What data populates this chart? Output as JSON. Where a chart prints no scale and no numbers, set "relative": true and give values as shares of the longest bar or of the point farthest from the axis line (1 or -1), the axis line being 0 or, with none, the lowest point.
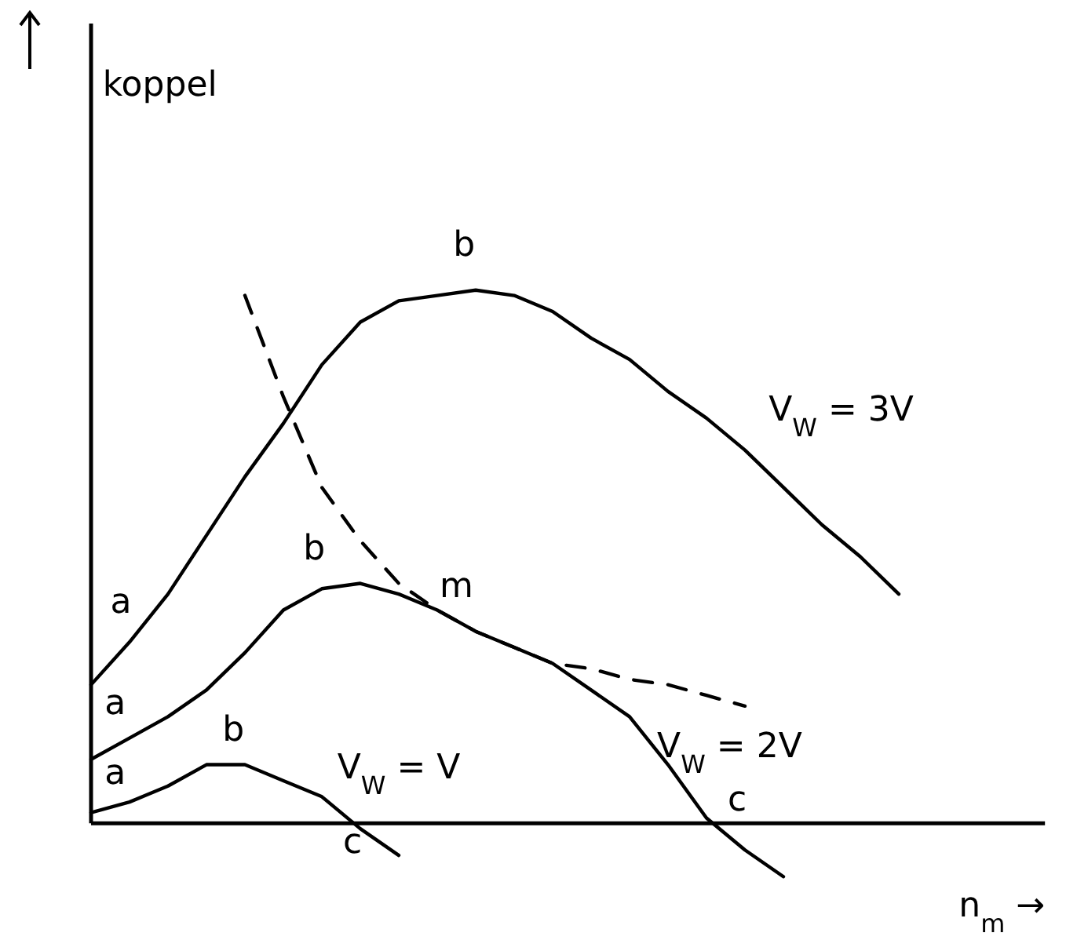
{
  "chart_data": {
    "type": "line",
    "relative": true,
    "xlabel": "n$_{m}$ →",
    "categories": [
      null,
      null,
      null,
      null,
      null,
      null,
      null,
      null,
      null,
      null,
      null,
      null,
      null,
      null,
      null,
      null,
      null,
      null,
      null,
      null,
      null,
      null
    ],
    "series": [
      {
        "color": "#000000",
        "values": [
          0.26,
          0.34,
          0.43,
          0.54,
          0.65,
          0.75,
          0.86,
          0.94,
          0.98,
          0.99,
          1,
          0.99,
          0.96,
          0.91,
          0.87,
          0.81,
          0.76,
          0.7,
          0.63,
          0.56,
          0.5,
          0.43
        ]
      },
      {
        "color": "#000000",
        "values": [
          0.12,
          0.16,
          0.2,
          0.25,
          0.32,
          0.4,
          0.44,
          0.45,
          0.43,
          0.4,
          0.36,
          0.33,
          0.3,
          0.25,
          0.2,
          0.11,
          0.01,
          -0.05,
          -0.1,
          null,
          null,
          null
        ]
      },
      {
        "color": "#000000",
        "values": [
          0.02,
          0.04,
          0.07,
          0.11,
          0.11,
          0.08,
          0.05,
          -0.01,
          -0.06,
          null,
          null,
          null,
          null,
          null,
          null,
          null,
          null,
          null,
          null,
          null,
          null,
          null
        ]
      },
      {
        "color": "#000000",
        "line_style": "dashed",
        "values": [
          null,
          null,
          null,
          null,
          0.99,
          0.8,
          0.63,
          0.53,
          0.45,
          0.4,
          0.36,
          0.33,
          0.3,
          0.29,
          0.27,
          0.26,
          0.24,
          0.22,
          null,
          null,
          null,
          null
        ]
      }
    ],
    "annotations": [
      "koppel",
      "a",
      "a",
      "a",
      "b",
      "b",
      "b",
      "m",
      "c",
      "c",
      "V$_{W}$ = 3V",
      "V$_{W}$ = 2V",
      "V$_{W}$ = V"
    ]
  }
}
